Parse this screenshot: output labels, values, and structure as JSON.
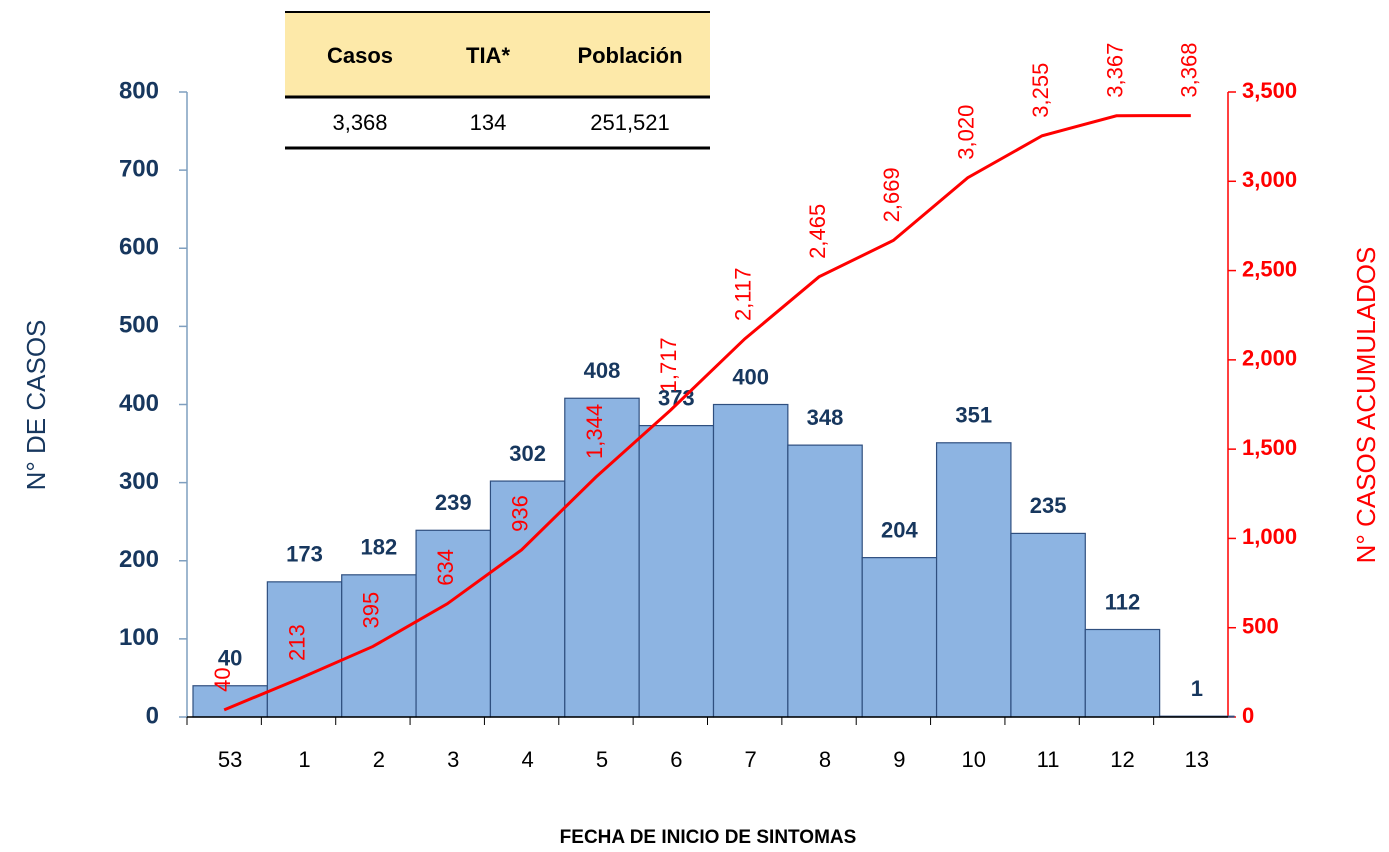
{
  "chart_data": {
    "type": "bar",
    "ylabel": "N° DE CASOS",
    "y2label": "N° CASOS ACUMULADOS",
    "xlabel": "FECHA DE INICIO DE SINTOMAS",
    "categories": [
      "53",
      "1",
      "2",
      "3",
      "4",
      "5",
      "6",
      "7",
      "8",
      "9",
      "10",
      "11",
      "12",
      "13"
    ],
    "series": [
      {
        "type": "bar",
        "color": "#8db4e2",
        "values": [
          40,
          173,
          182,
          239,
          302,
          408,
          373,
          400,
          348,
          204,
          351,
          235,
          112,
          1
        ]
      },
      {
        "type": "line",
        "axis": "y2",
        "color": "#ff0000",
        "values": [
          40,
          213,
          395,
          634,
          936,
          1344,
          1717,
          2117,
          2465,
          2669,
          3020,
          3255,
          3367,
          3368
        ],
        "value_labels": [
          "40",
          "213",
          "395",
          "634",
          "936",
          "1,344",
          "1,717",
          "2,117",
          "2,465",
          "2,669",
          "3,020",
          "3,255",
          "3,367",
          "3,368"
        ]
      }
    ],
    "ylim": [
      0,
      800
    ],
    "yticks": [
      0,
      100,
      200,
      300,
      400,
      500,
      600,
      700,
      800
    ],
    "y2lim": [
      0,
      3500
    ],
    "y2ticks": [
      0,
      500,
      {
        "value": 1000,
        "label": "1,000"
      },
      {
        "value": 1500,
        "label": "1,500"
      },
      {
        "value": 2000,
        "label": "2,000"
      },
      {
        "value": 2500,
        "label": "2,500"
      },
      {
        "value": 3000,
        "label": "3,000"
      },
      {
        "value": 3500,
        "label": "3,500"
      }
    ]
  },
  "table": {
    "header": [
      "Casos",
      "TIA*",
      "Población"
    ],
    "row": [
      "3,368",
      "134",
      "251,521"
    ]
  }
}
